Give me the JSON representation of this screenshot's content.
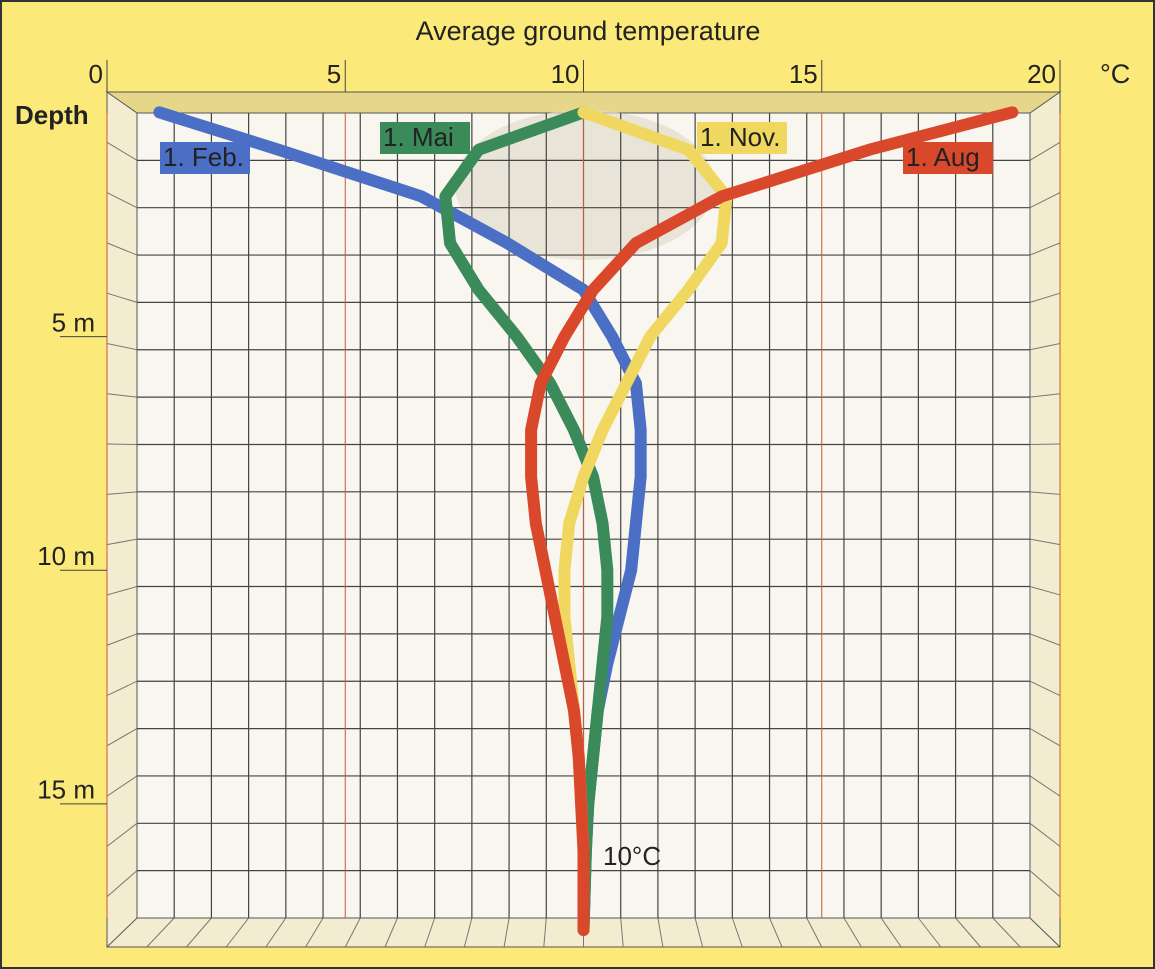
{
  "chart_data": {
    "type": "line",
    "title": "Average ground temperature",
    "x_label": "°C",
    "y_label": "Depth",
    "annotation": "10°C",
    "xlim": [
      0,
      20
    ],
    "xticks": [
      0,
      5,
      10,
      15,
      20
    ],
    "ylim": [
      0,
      18
    ],
    "yticks": [
      {
        "value": 5,
        "label": "5 m"
      },
      {
        "value": 10,
        "label": "10 m"
      },
      {
        "value": 15,
        "label": "15 m"
      }
    ],
    "y": [
      0.2,
      1,
      2,
      3,
      4,
      5,
      6,
      7,
      8,
      9,
      10,
      11,
      12,
      13,
      14,
      15,
      16,
      17.7
    ],
    "grid": true,
    "series": [
      {
        "name": "1. Feb.",
        "color": "#4a6fc4",
        "values": [
          1.1,
          3.6,
          6.6,
          8.4,
          10.0,
          10.6,
          11.1,
          11.2,
          11.2,
          11.1,
          11.0,
          10.75,
          10.5,
          10.3,
          10.2,
          10.1,
          10.05,
          10.0
        ]
      },
      {
        "name": "1. Mai",
        "color": "#3a8a5a",
        "values": [
          10.0,
          7.8,
          7.1,
          7.2,
          7.8,
          8.6,
          9.3,
          9.8,
          10.2,
          10.4,
          10.5,
          10.5,
          10.4,
          10.3,
          10.2,
          10.1,
          10.05,
          10.0
        ]
      },
      {
        "name": "1. Nov.",
        "color": "#f0d860",
        "values": [
          10.0,
          12.2,
          13.0,
          12.9,
          12.2,
          11.4,
          10.9,
          10.4,
          10.0,
          9.7,
          9.6,
          9.6,
          9.7,
          9.8,
          9.9,
          9.95,
          10.0,
          10.0
        ]
      },
      {
        "name": "1. Aug",
        "color": "#d9482b",
        "values": [
          19.0,
          16.0,
          12.9,
          11.1,
          10.2,
          9.6,
          9.1,
          8.9,
          8.9,
          9.0,
          9.2,
          9.4,
          9.6,
          9.8,
          9.9,
          9.95,
          10.0,
          10.0
        ]
      }
    ]
  }
}
